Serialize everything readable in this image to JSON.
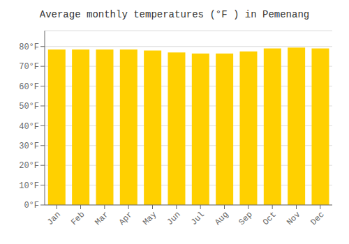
{
  "chart_data": {
    "type": "bar",
    "title": "Average monthly temperatures (°F ) in Pemenang",
    "categories": [
      "Jan",
      "Feb",
      "Mar",
      "Apr",
      "May",
      "Jun",
      "Jul",
      "Aug",
      "Sep",
      "Oct",
      "Nov",
      "Dec"
    ],
    "values": [
      78.5,
      78.5,
      78.5,
      78.5,
      78.0,
      77.0,
      76.5,
      76.5,
      77.5,
      79.0,
      79.5,
      79.0
    ],
    "color": "#FFD000",
    "ylim": [
      0,
      88
    ],
    "yticks": [
      {
        "value": 0,
        "label": "0°F"
      },
      {
        "value": 10,
        "label": "10°F"
      },
      {
        "value": 20,
        "label": "20°F"
      },
      {
        "value": 30,
        "label": "30°F"
      },
      {
        "value": 40,
        "label": "40°F"
      },
      {
        "value": 50,
        "label": "50°F"
      },
      {
        "value": 60,
        "label": "60°F"
      },
      {
        "value": 70,
        "label": "70°F"
      },
      {
        "value": 80,
        "label": "80°F"
      }
    ],
    "grid": true
  }
}
